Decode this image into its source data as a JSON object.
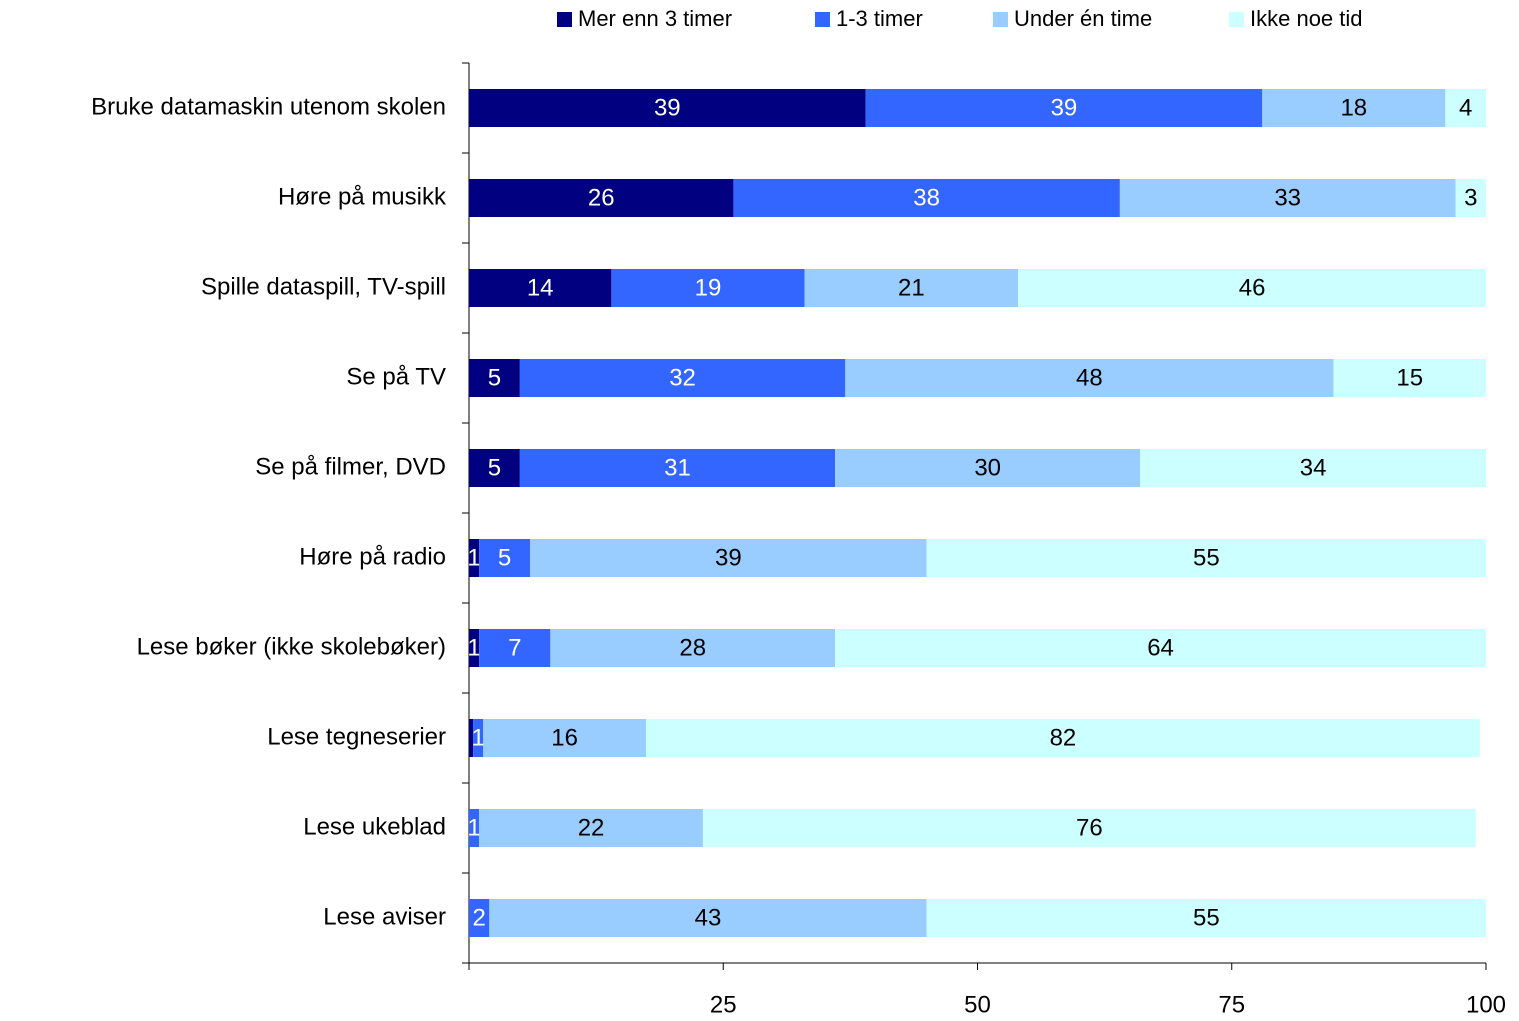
{
  "chart_data": {
    "type": "stacked_bar_horizontal",
    "categories": [
      "Bruke datamaskin utenom skolen",
      "Høre på musikk",
      "Spille dataspill, TV-spill",
      "Se på TV",
      "Se på filmer, DVD",
      "Høre på radio",
      "Lese bøker (ikke skolebøker)",
      "Lese tegneserier",
      "Lese ukeblad",
      "Lese aviser"
    ],
    "series": [
      {
        "name": "Mer enn 3 timer",
        "color": "#000080",
        "text_color": "#ffffff",
        "values": [
          39,
          26,
          14,
          5,
          5,
          1,
          1,
          0.4,
          0,
          0
        ],
        "value_labels": [
          "39",
          "26",
          "14",
          "5",
          "5",
          "1",
          "1",
          null,
          null,
          null
        ]
      },
      {
        "name": "1-3 timer",
        "color": "#3366ff",
        "text_color": "#ffffff",
        "values": [
          39,
          38,
          19,
          32,
          31,
          5,
          7,
          1,
          1,
          2
        ]
      },
      {
        "name": "Under én time",
        "color": "#99ccff",
        "text_color": "#000000",
        "values": [
          18,
          33,
          21,
          48,
          30,
          39,
          28,
          16,
          22,
          43
        ]
      },
      {
        "name": "Ikke noe tid",
        "color": "#ccffff",
        "text_color": "#000000",
        "values": [
          4,
          3,
          46,
          15,
          34,
          55,
          64,
          82,
          76,
          55
        ]
      }
    ],
    "xlim": [
      0,
      100
    ],
    "xticks": [
      25,
      50,
      75,
      100
    ],
    "legend": "top"
  }
}
